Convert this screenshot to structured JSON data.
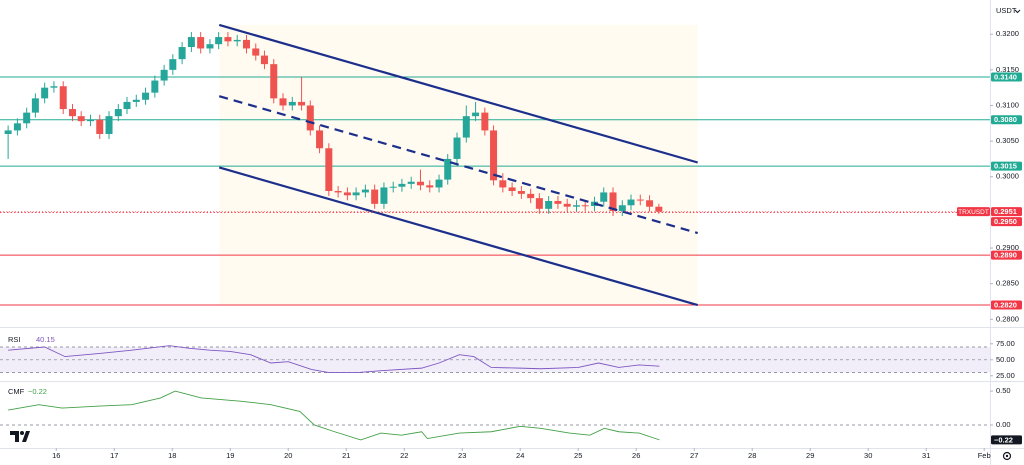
{
  "toolbar": {
    "currency": "USDT"
  },
  "chart_data": [
    {
      "type": "candlestick",
      "symbol": "TRXUSDT",
      "up_color": "#26a69a",
      "down_color": "#ef5350",
      "xlim": [
        15.03,
        32.1
      ],
      "ylim": [
        0.2792,
        0.3248
      ],
      "xticks": [
        16,
        17,
        18,
        19,
        20,
        21,
        22,
        23,
        24,
        25,
        26,
        27,
        28,
        29,
        30,
        31,
        {
          "value": 32,
          "label": "Feb"
        }
      ],
      "yticks": [
        {
          "value": 0.32,
          "label": "0.3200"
        },
        {
          "value": 0.315,
          "label": "0.3150"
        },
        {
          "value": 0.31,
          "label": "0.3100"
        },
        {
          "value": 0.305,
          "label": "0.3050"
        },
        {
          "value": 0.3,
          "label": "0.3000"
        },
        {
          "value": 0.29,
          "label": "0.2900"
        },
        {
          "value": 0.285,
          "label": "0.2850"
        },
        {
          "value": 0.28,
          "label": "0.2800"
        }
      ],
      "x": [
        15.17,
        15.33,
        15.49,
        15.64,
        15.8,
        15.96,
        16.12,
        16.28,
        16.43,
        16.59,
        16.75,
        16.91,
        17.07,
        17.22,
        17.38,
        17.54,
        17.7,
        17.86,
        18.01,
        18.17,
        18.33,
        18.49,
        18.65,
        18.8,
        18.96,
        19.12,
        19.28,
        19.44,
        19.59,
        19.75,
        19.91,
        20.07,
        20.23,
        20.38,
        20.54,
        20.7,
        20.86,
        21.02,
        21.17,
        21.33,
        21.49,
        21.65,
        21.81,
        21.96,
        22.12,
        22.28,
        22.44,
        22.6,
        22.75,
        22.91,
        23.07,
        23.23,
        23.39,
        23.54,
        23.7,
        23.86,
        24.02,
        24.18,
        24.33,
        24.49,
        24.65,
        24.81,
        24.97,
        25.12,
        25.28,
        25.44,
        25.6,
        25.76,
        25.91,
        26.07,
        26.23,
        26.39
      ],
      "open": [
        0.306,
        0.3065,
        0.3075,
        0.309,
        0.311,
        0.3125,
        0.3127,
        0.3095,
        0.3085,
        0.3078,
        0.308,
        0.306,
        0.3085,
        0.3095,
        0.3105,
        0.3108,
        0.3118,
        0.3135,
        0.315,
        0.3165,
        0.3182,
        0.3196,
        0.318,
        0.3186,
        0.3196,
        0.319,
        0.3192,
        0.318,
        0.317,
        0.3158,
        0.311,
        0.31,
        0.3105,
        0.31,
        0.3065,
        0.304,
        0.298,
        0.2978,
        0.2974,
        0.2978,
        0.2982,
        0.2962,
        0.2985,
        0.2986,
        0.299,
        0.2993,
        0.2988,
        0.2985,
        0.2996,
        0.3025,
        0.3055,
        0.3085,
        0.309,
        0.3065,
        0.2995,
        0.2985,
        0.298,
        0.2976,
        0.297,
        0.2955,
        0.2966,
        0.2962,
        0.2958,
        0.296,
        0.2959,
        0.2965,
        0.2978,
        0.2952,
        0.296,
        0.2968,
        0.2967,
        0.2958
      ],
      "high": [
        0.3072,
        0.3082,
        0.3097,
        0.3117,
        0.3132,
        0.3134,
        0.3134,
        0.3102,
        0.3092,
        0.3087,
        0.3087,
        0.3092,
        0.3102,
        0.3112,
        0.3115,
        0.3125,
        0.3142,
        0.3157,
        0.3172,
        0.3189,
        0.3203,
        0.3203,
        0.3193,
        0.3203,
        0.3203,
        0.3199,
        0.3199,
        0.3187,
        0.3177,
        0.3165,
        0.3117,
        0.3112,
        0.314,
        0.3107,
        0.3072,
        0.3047,
        0.2987,
        0.2985,
        0.2985,
        0.2989,
        0.2989,
        0.2992,
        0.2993,
        0.2997,
        0.3,
        0.301,
        0.2995,
        0.3003,
        0.3032,
        0.3062,
        0.31,
        0.3105,
        0.3097,
        0.3072,
        0.3005,
        0.2992,
        0.2987,
        0.2983,
        0.2977,
        0.2973,
        0.2973,
        0.2969,
        0.2967,
        0.2967,
        0.2972,
        0.2985,
        0.2985,
        0.2967,
        0.2975,
        0.2975,
        0.2974,
        0.2962
      ],
      "low": [
        0.3025,
        0.3058,
        0.3068,
        0.3083,
        0.3103,
        0.3118,
        0.3088,
        0.3078,
        0.3071,
        0.3071,
        0.3053,
        0.3053,
        0.3078,
        0.3088,
        0.3098,
        0.3101,
        0.3111,
        0.3128,
        0.3143,
        0.3158,
        0.3175,
        0.3173,
        0.3173,
        0.3179,
        0.3183,
        0.3183,
        0.3173,
        0.3163,
        0.3151,
        0.3103,
        0.3093,
        0.3093,
        0.3093,
        0.3058,
        0.3033,
        0.2973,
        0.2971,
        0.2967,
        0.2967,
        0.2971,
        0.2955,
        0.2955,
        0.2978,
        0.2979,
        0.2983,
        0.2981,
        0.2978,
        0.2978,
        0.2989,
        0.3018,
        0.3048,
        0.3078,
        0.3058,
        0.2988,
        0.2978,
        0.2973,
        0.2969,
        0.2963,
        0.2948,
        0.2948,
        0.2955,
        0.2951,
        0.2951,
        0.2952,
        0.2952,
        0.2958,
        0.2945,
        0.2945,
        0.2953,
        0.296,
        0.2951,
        0.2948
      ],
      "close": [
        0.3065,
        0.3075,
        0.309,
        0.311,
        0.3125,
        0.3127,
        0.3095,
        0.3085,
        0.3078,
        0.308,
        0.306,
        0.3085,
        0.3095,
        0.3105,
        0.3108,
        0.3118,
        0.3135,
        0.315,
        0.3165,
        0.3182,
        0.3196,
        0.318,
        0.3186,
        0.3196,
        0.319,
        0.3192,
        0.318,
        0.317,
        0.3158,
        0.311,
        0.31,
        0.3105,
        0.31,
        0.3065,
        0.304,
        0.298,
        0.2978,
        0.2974,
        0.2978,
        0.2982,
        0.2962,
        0.2985,
        0.2986,
        0.299,
        0.2993,
        0.2988,
        0.2985,
        0.2996,
        0.3025,
        0.3055,
        0.3085,
        0.309,
        0.3065,
        0.2995,
        0.2985,
        0.298,
        0.2976,
        0.297,
        0.2955,
        0.2966,
        0.2962,
        0.2958,
        0.296,
        0.2959,
        0.2965,
        0.2978,
        0.2952,
        0.296,
        0.2968,
        0.2967,
        0.2958,
        0.2951
      ],
      "levels": [
        {
          "value": 0.314,
          "label": "0.3140",
          "color": "#22ab94",
          "style": "solid"
        },
        {
          "value": 0.308,
          "label": "0.3080",
          "color": "#22ab94",
          "style": "solid"
        },
        {
          "value": 0.3015,
          "label": "0.3015",
          "color": "#22ab94",
          "style": "solid"
        },
        {
          "value": 0.295,
          "label": "0.2950",
          "color": "#f23645",
          "style": "dotted"
        },
        {
          "value": 0.289,
          "label": "0.2890",
          "color": "#f23645",
          "style": "solid"
        },
        {
          "value": 0.282,
          "label": "0.2820",
          "color": "#f23645",
          "style": "solid"
        }
      ],
      "channel": [
        {
          "x": [
            18.81,
            27.06
          ],
          "y": [
            0.3213,
            0.302
          ],
          "style": "solid"
        },
        {
          "x": [
            18.81,
            27.06
          ],
          "y": [
            0.3113,
            0.2921
          ],
          "style": "dashed"
        },
        {
          "x": [
            18.81,
            27.06
          ],
          "y": [
            0.3013,
            0.282
          ],
          "style": "solid"
        }
      ],
      "channel_color": "#1c2f8c",
      "last_price": {
        "value": 0.2951,
        "label": "0.2951",
        "color": "#f23645"
      }
    },
    {
      "type": "line",
      "title": "RSI",
      "color": "#7e57c2",
      "last": 40.15,
      "ylim": [
        20,
        95
      ],
      "band": [
        30,
        70
      ],
      "levels": [
        70,
        50,
        30
      ],
      "yticks": [
        {
          "value": 75,
          "label": "75.00"
        },
        {
          "value": 50,
          "label": "50.00"
        },
        {
          "value": 25,
          "label": "25.00"
        }
      ],
      "x": [
        15.17,
        15.8,
        16.15,
        16.75,
        17.3,
        17.95,
        18.3,
        18.65,
        19.0,
        19.35,
        19.7,
        20.0,
        20.4,
        20.7,
        21.2,
        21.6,
        22.3,
        22.6,
        22.95,
        23.2,
        23.5,
        24.0,
        24.35,
        25.0,
        25.35,
        25.7,
        26.05,
        26.4
      ],
      "values": [
        65,
        70,
        55,
        60,
        65,
        72,
        68,
        65,
        63,
        58,
        45,
        47,
        35,
        30,
        30,
        33,
        37,
        45,
        58,
        55,
        38,
        37,
        36,
        38,
        45,
        38,
        42,
        40
      ]
    },
    {
      "type": "line",
      "title": "CMF",
      "color": "#43a047",
      "last": {
        "value": -0.22,
        "label": "−0.22"
      },
      "ylim": [
        -0.34,
        0.62
      ],
      "levels": [
        0
      ],
      "yticks": [
        {
          "value": 0.5,
          "label": "0.50"
        },
        {
          "value": 0,
          "label": "0.00"
        }
      ],
      "x": [
        15.17,
        15.7,
        16.1,
        16.75,
        17.3,
        17.8,
        18.05,
        18.5,
        19.2,
        19.7,
        20.2,
        20.45,
        20.8,
        21.25,
        21.6,
        21.95,
        22.3,
        22.4,
        22.95,
        23.5,
        24.0,
        24.35,
        24.85,
        25.2,
        25.45,
        25.7,
        26.05,
        26.4
      ],
      "values": [
        0.22,
        0.3,
        0.25,
        0.28,
        0.3,
        0.4,
        0.5,
        0.4,
        0.35,
        0.3,
        0.2,
        0.0,
        -0.1,
        -0.22,
        -0.12,
        -0.15,
        -0.1,
        -0.2,
        -0.12,
        -0.1,
        -0.02,
        -0.05,
        -0.12,
        -0.15,
        -0.05,
        -0.1,
        -0.12,
        -0.22
      ]
    }
  ]
}
